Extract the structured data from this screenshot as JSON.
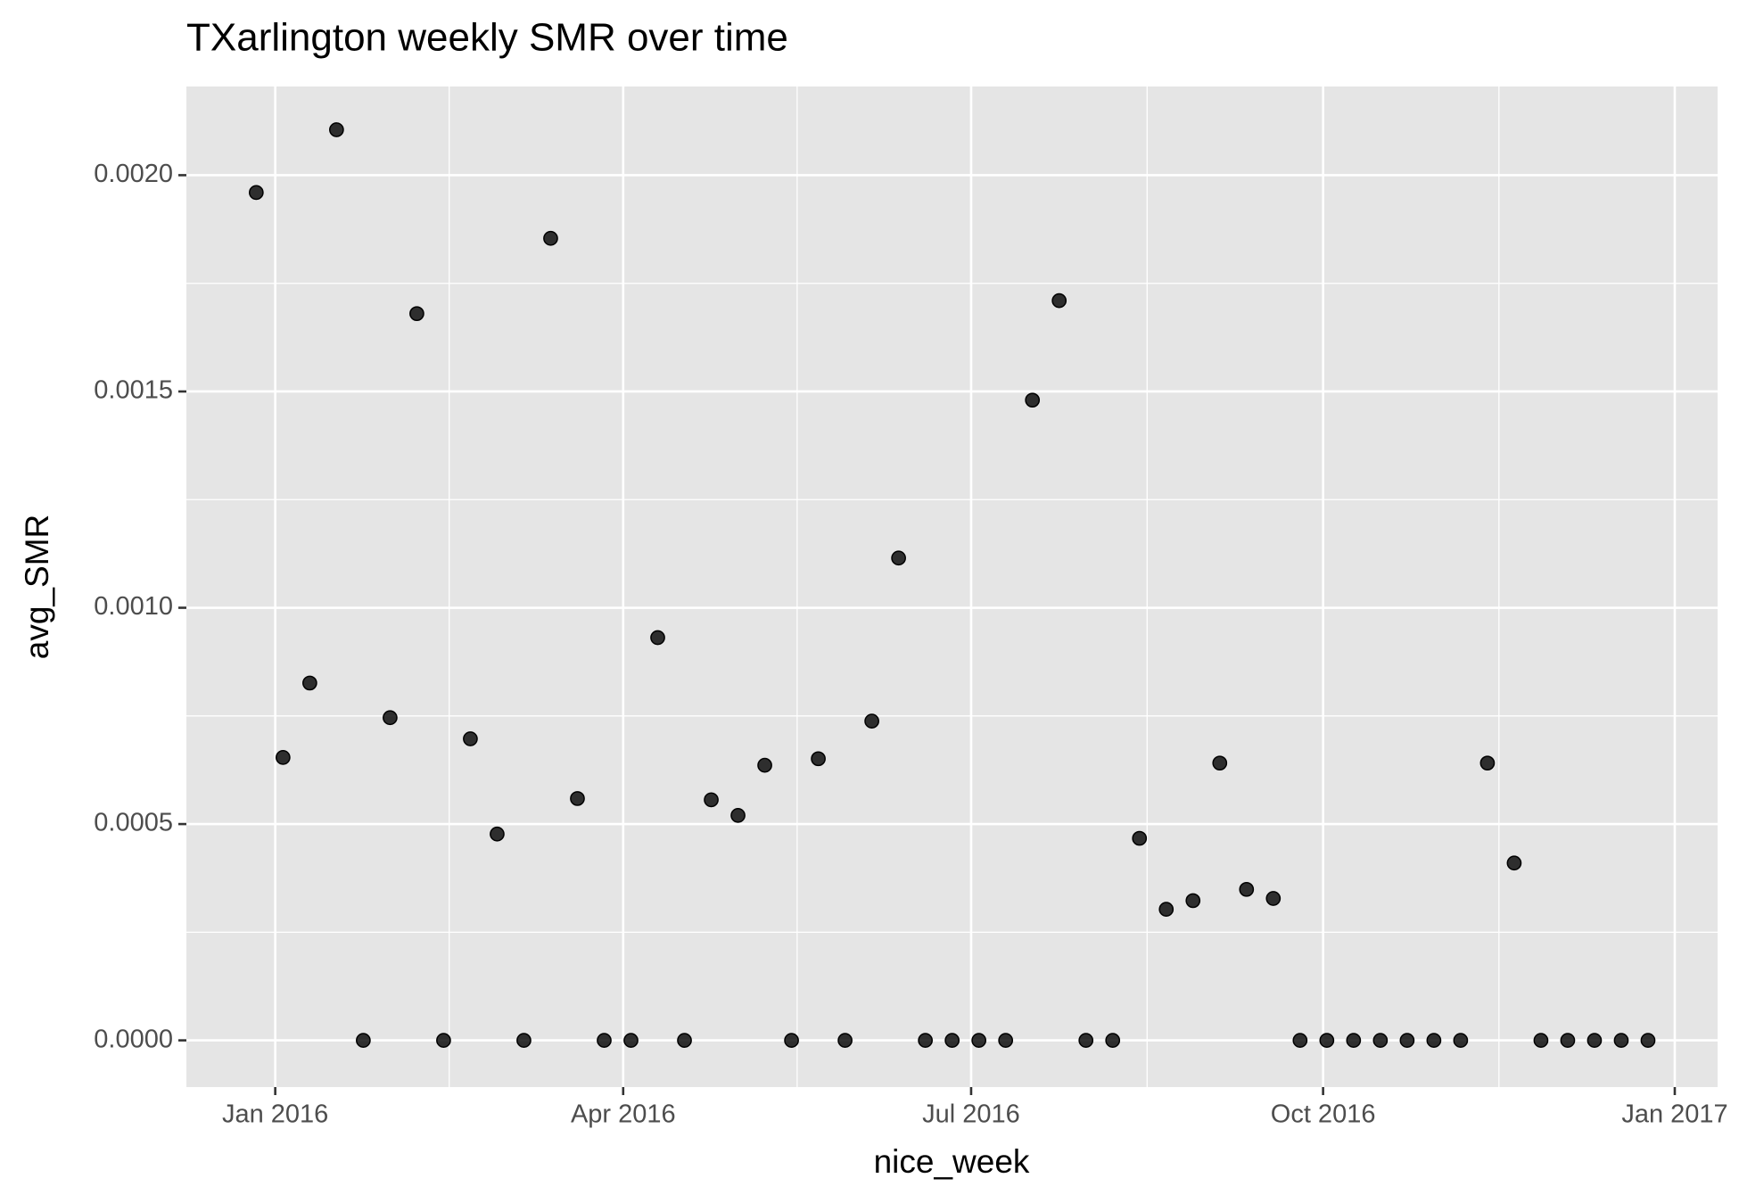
{
  "chart_data": {
    "type": "scatter",
    "title": "TXarlington weekly SMR over time",
    "x_label": "nice_week",
    "y_label": "avg_SMR",
    "color": "#000000",
    "grid": true,
    "x": [
      0,
      1,
      2,
      3,
      4,
      5,
      6,
      7,
      8,
      9,
      10,
      11,
      12,
      13,
      14,
      15,
      16,
      17,
      18,
      19,
      20,
      21,
      22,
      23,
      24,
      25,
      26,
      27,
      28,
      29,
      30,
      31,
      32,
      33,
      34,
      35,
      36,
      37,
      38,
      39,
      40,
      41,
      42,
      43,
      44,
      45,
      46,
      47,
      48,
      49,
      50,
      51,
      52
    ],
    "values": [
      0.00196,
      0.000654,
      0.000826,
      0.002105,
      0,
      0.000746,
      0.00168,
      0,
      0.000697,
      0.000477,
      0,
      0.001854,
      0.000559,
      0,
      0,
      0.000931,
      0,
      0.000556,
      0.00052,
      0.000636,
      0,
      0.000651,
      0,
      0.000738,
      0.001115,
      0,
      0,
      0,
      0,
      0.00148,
      0.00171,
      0,
      0,
      0.000467,
      0.000303,
      0.000323,
      0.000641,
      0.000349,
      0.000328,
      0,
      0,
      0,
      0,
      0,
      0,
      0,
      0.000641,
      0.00041,
      0,
      0,
      0,
      0,
      0
    ],
    "xlim": [
      -2.61,
      54.6
    ],
    "xticks": [
      {
        "value": 0.71,
        "label": "Jan 2016"
      },
      {
        "value": 13.71,
        "label": "Apr 2016"
      },
      {
        "value": 26.71,
        "label": "Jul 2016"
      },
      {
        "value": 39.86,
        "label": "Oct 2016"
      },
      {
        "value": 53,
        "label": "Jan 2017"
      }
    ],
    "ylim": [
      -0.000108,
      0.002205
    ],
    "yticks": [
      {
        "value": 0,
        "label": "0.0000"
      },
      {
        "value": 0.0005,
        "label": "0.0005"
      },
      {
        "value": 0.001,
        "label": "0.0010"
      },
      {
        "value": 0.0015,
        "label": "0.0015"
      },
      {
        "value": 0.002,
        "label": "0.0020"
      }
    ]
  }
}
